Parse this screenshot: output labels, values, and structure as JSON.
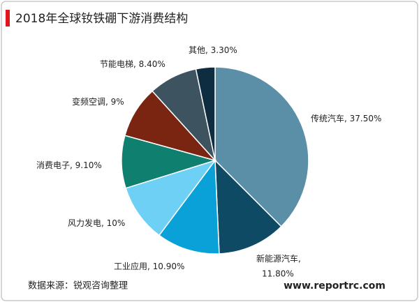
{
  "chart_data": {
    "type": "pie",
    "title": "2018年全球钕铁硼下游消费结构",
    "categories": [
      "传统汽车",
      "新能源汽车",
      "工业应用",
      "风力发电",
      "消费电子",
      "变频空调",
      "节能电梯",
      "其他"
    ],
    "values": [
      37.5,
      11.8,
      10.9,
      10,
      9.1,
      9,
      8.4,
      3.3
    ],
    "value_labels": [
      "37.50%",
      "11.80%",
      "10.90%",
      "10%",
      "9.10%",
      "9%",
      "8.40%",
      "3.30%"
    ],
    "label_separator": ", ",
    "colors": [
      "#5b8fa8",
      "#0e4a64",
      "#0aa0d8",
      "#6fd0f5",
      "#0f8070",
      "#7a2512",
      "#3d5360",
      "#0f2d40"
    ],
    "source": "数据来源：锐观咨询整理",
    "website": "www.reportrc.com"
  }
}
